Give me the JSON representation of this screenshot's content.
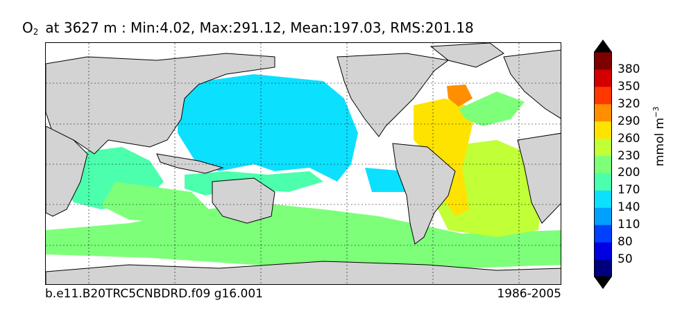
{
  "title": {
    "var": "O",
    "sub": "2",
    "rest": "at 3627 m : Min:4.02, Max:291.12, Mean:197.03, RMS:201.18"
  },
  "caption_left": "b.e11.B20TRC5CNBDRD.f09 g16.001",
  "caption_right": "1986-2005",
  "colorbar": {
    "unit_prefix": "mmol m",
    "unit_exp": "−3",
    "ticks": [
      "50",
      "80",
      "110",
      "140",
      "170",
      "200",
      "230",
      "260",
      "290",
      "320",
      "350",
      "380"
    ],
    "colors": [
      "#00007f",
      "#0000e3",
      "#0040ff",
      "#00a0ff",
      "#0ce0ff",
      "#4bffad",
      "#7dff7a",
      "#c1ff36",
      "#ffe300",
      "#ff8e00",
      "#ff3800",
      "#d40000",
      "#7f0000"
    ]
  },
  "map": {
    "land_color": "#d3d3d3",
    "ocean_nodata_color": "#ffffff",
    "grid_style": "dashed"
  }
}
